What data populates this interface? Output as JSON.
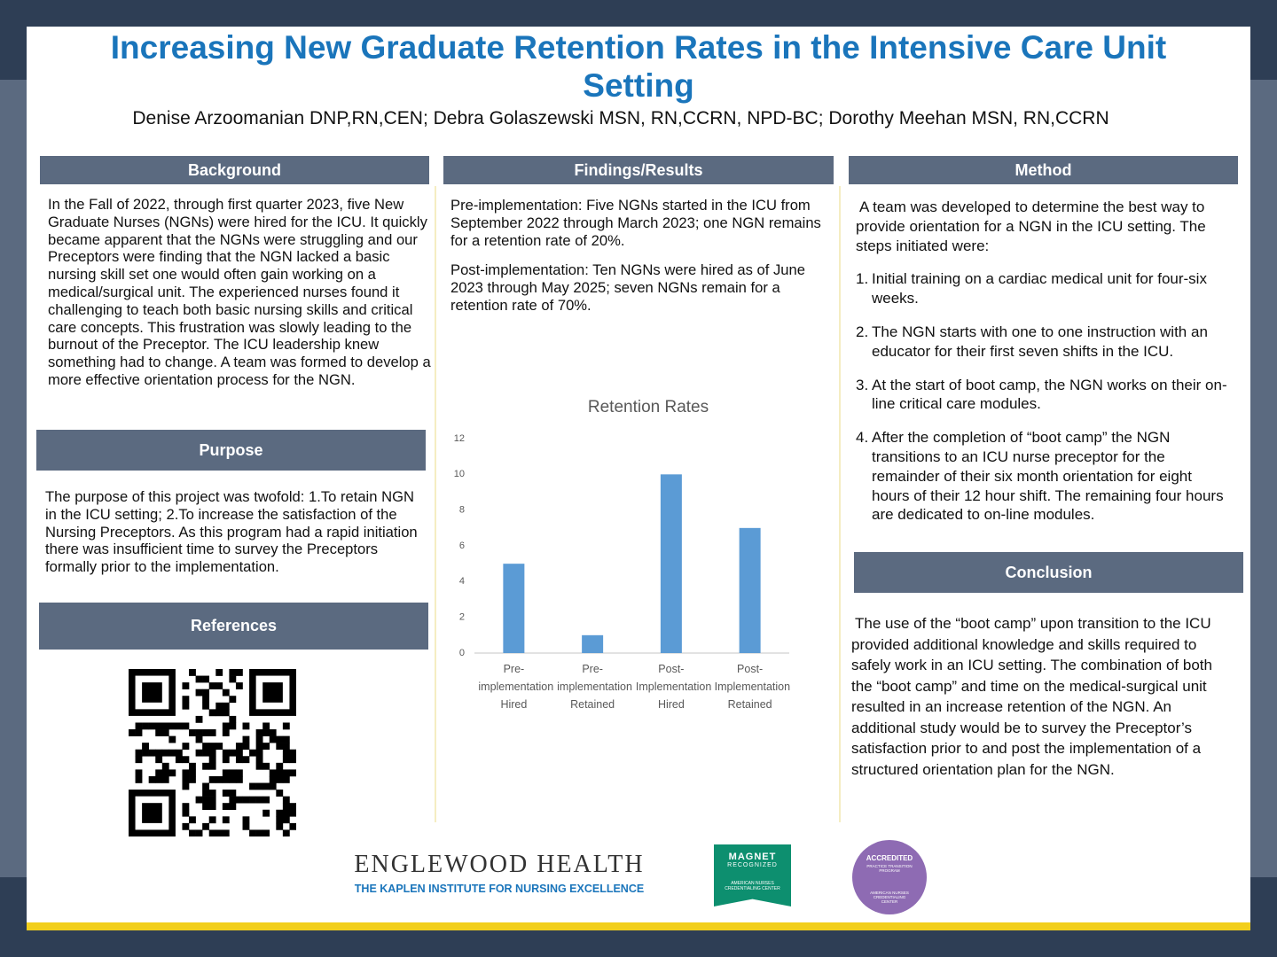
{
  "header": {
    "title": "Increasing New Graduate Retention Rates in the Intensive Care Unit Setting",
    "authors": "Denise Arzoomanian DNP,RN,CEN; Debra Golaszewski MSN, RN,CCRN, NPD-BC; Dorothy Meehan MSN, RN,CCRN"
  },
  "background": {
    "heading": "Background",
    "text": "In the Fall of 2022, through first quarter 2023, five New Graduate Nurses (NGNs) were hired for the ICU. It quickly became apparent that the NGNs were struggling and our Preceptors were finding that the NGN lacked a basic nursing skill set one would often gain working on a medical/surgical unit. The experienced nurses found it challenging to teach both basic nursing skills and critical care concepts. This frustration was slowly leading to the burnout of the Preceptor. The ICU leadership knew something had to change. A team was formed to develop a more effective orientation process for the NGN."
  },
  "purpose": {
    "heading": "Purpose",
    "text": "The purpose of this project was twofold: 1.To retain NGN in the ICU setting; 2.To increase the satisfaction of the Nursing Preceptors. As this program had a rapid initiation there was insufficient time to survey the Preceptors formally prior to the implementation."
  },
  "references": {
    "heading": "References"
  },
  "findings": {
    "heading": "Findings/Results",
    "paragraphs": [
      "Pre-implementation: Five NGNs started in the ICU from September 2022 through March 2023; one NGN remains for a retention rate of 20%.",
      "Post-implementation: Ten NGNs were hired as of June 2023 through May 2025; seven NGNs remain for a retention rate of 70%."
    ]
  },
  "method": {
    "heading": "Method",
    "intro": "A team was developed to determine the best way to provide orientation for a NGN in the ICU setting. The steps initiated were:",
    "steps": [
      {
        "number": "1.",
        "text": "Initial training on a cardiac medical unit for four-six weeks."
      },
      {
        "number": "2.",
        "text": "The NGN starts with one to one instruction with an educator for their first seven shifts in the ICU."
      },
      {
        "number": "3.",
        "text": "At the start of boot camp, the NGN works on their on-line critical care modules."
      },
      {
        "number": "4.",
        "text": "After the completion of “boot camp” the NGN transitions to an ICU nurse preceptor for the remainder of their six month orientation for eight hours of their 12 hour shift. The remaining four hours are dedicated to on-line modules."
      }
    ]
  },
  "conclusion": {
    "heading": "Conclusion",
    "text": "The use of the “boot camp” upon transition to the ICU provided additional knowledge and skills required to safely work in an ICU setting. The combination of both the “boot camp” and time on the medical-surgical unit resulted in an increase retention of the NGN. An additional study would be to survey the Preceptor’s satisfaction prior to and post the  implementation of a structured orientation plan for the NGN."
  },
  "chart_data": {
    "type": "bar",
    "title": "Retention Rates",
    "categories": [
      "Pre-implementation Hired",
      "Pre-implementation Retained",
      "Post-Implementation Hired",
      "Post-Implementation Retained"
    ],
    "values": [
      5,
      1,
      10,
      7
    ],
    "color": "#5b9bd5",
    "ylim": [
      0,
      12
    ],
    "yticks": [
      0,
      2,
      4,
      6,
      8,
      10,
      12
    ],
    "grid": false
  },
  "footer": {
    "org": "ENGLEWOOD HEALTH",
    "institute": "THE KAPLEN INSTITUTE FOR NURSING EXCELLENCE",
    "magnet": {
      "line1": "MAGNET",
      "line2": "RECOGNIZED",
      "line3": "AMERICAN NURSES CREDENTIALING CENTER"
    },
    "accredited": {
      "line1": "ACCREDITED",
      "line2": "PRACTICE TRANSITION PROGRAM",
      "line3": "AMERICAN NURSES CREDENTIALING CENTER"
    }
  }
}
